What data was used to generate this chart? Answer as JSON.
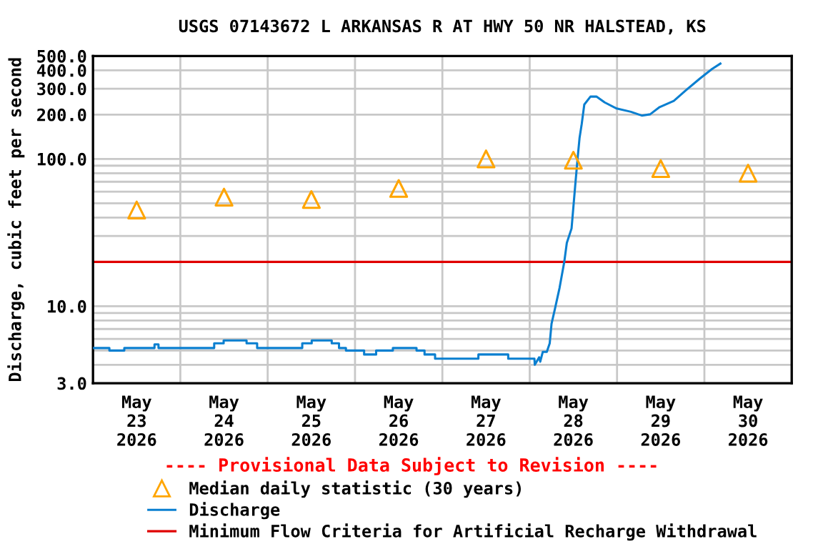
{
  "chart_data": {
    "type": "line",
    "title": "USGS 07143672 L ARKANSAS R AT HWY 50 NR HALSTEAD, KS",
    "ylabel": "Discharge, cubic feet per second",
    "log": "y",
    "grid": true,
    "legend": "bottom",
    "annotations": [
      "---- Provisional Data Subject to Revision ----"
    ],
    "xlim": [
      "2026-05-23",
      "2026-05-31"
    ],
    "xticks": [
      {
        "value": "2026-05-23T12:00",
        "label": "May\n23\n2026"
      },
      {
        "value": "2026-05-24T12:00",
        "label": "May\n24\n2026"
      },
      {
        "value": "2026-05-25T12:00",
        "label": "May\n25\n2026"
      },
      {
        "value": "2026-05-26T12:00",
        "label": "May\n26\n2026"
      },
      {
        "value": "2026-05-27T12:00",
        "label": "May\n27\n2026"
      },
      {
        "value": "2026-05-28T12:00",
        "label": "May\n28\n2026"
      },
      {
        "value": "2026-05-29T12:00",
        "label": "May\n29\n2026"
      },
      {
        "value": "2026-05-30T12:00",
        "label": "May\n30\n2026"
      },
      {
        "value": "2026-05-24",
        "label": null
      },
      {
        "value": "2026-05-25",
        "label": null
      },
      {
        "value": "2026-05-26",
        "label": null
      },
      {
        "value": "2026-05-27",
        "label": null
      },
      {
        "value": "2026-05-28",
        "label": null
      },
      {
        "value": "2026-05-29",
        "label": null
      },
      {
        "value": "2026-05-30",
        "label": null
      }
    ],
    "ylim": [
      3,
      500
    ],
    "yticks": [
      {
        "value": 3,
        "label": "3.0"
      },
      {
        "value": 4,
        "label": null
      },
      {
        "value": 5,
        "label": null
      },
      {
        "value": 6,
        "label": null
      },
      {
        "value": 7,
        "label": null
      },
      {
        "value": 8,
        "label": null
      },
      {
        "value": 9,
        "label": null
      },
      {
        "value": 10,
        "label": "10.0"
      },
      {
        "value": 20,
        "label": null
      },
      {
        "value": 30,
        "label": null
      },
      {
        "value": 40,
        "label": null
      },
      {
        "value": 50,
        "label": null
      },
      {
        "value": 60,
        "label": null
      },
      {
        "value": 70,
        "label": null
      },
      {
        "value": 80,
        "label": null
      },
      {
        "value": 90,
        "label": null
      },
      {
        "value": 100,
        "label": "100.0"
      },
      {
        "value": 200,
        "label": "200.0"
      },
      {
        "value": 300,
        "label": "300.0"
      },
      {
        "value": 400,
        "label": "400.0"
      },
      {
        "value": 500,
        "label": "500.0"
      }
    ],
    "ref_lines": [
      {
        "axis": "y",
        "value": 20,
        "label": "Minimum Flow Criteria for Artificial Recharge Withdrawal",
        "color": "#e00000"
      }
    ],
    "series": [
      {
        "name": "Median daily statistic (30 years)",
        "type": "scatter",
        "marker": "triangle",
        "color": "#ffa500",
        "x": [
          "2026-05-23T12:00",
          "2026-05-24T12:00",
          "2026-05-25T12:00",
          "2026-05-26T12:00",
          "2026-05-27T12:00",
          "2026-05-28T12:00",
          "2026-05-29T12:00",
          "2026-05-30T12:00"
        ],
        "values": [
          45,
          55,
          53,
          63,
          100,
          98,
          86,
          80
        ]
      },
      {
        "name": "Discharge",
        "color": "#0a7fd0",
        "x": [
          "2026-05-23T00:00",
          "2026-05-23T04:30",
          "2026-05-23T04:30",
          "2026-05-23T08:36",
          "2026-05-23T08:36",
          "2026-05-23T16:54",
          "2026-05-23T16:54",
          "2026-05-23T18:00",
          "2026-05-23T18:00",
          "2026-05-24T09:18",
          "2026-05-24T09:18",
          "2026-05-24T11:54",
          "2026-05-24T11:54",
          "2026-05-24T18:12",
          "2026-05-24T18:12",
          "2026-05-24T21:06",
          "2026-05-24T21:06",
          "2026-05-25T09:30",
          "2026-05-25T09:30",
          "2026-05-25T12:06",
          "2026-05-25T12:06",
          "2026-05-25T17:36",
          "2026-05-25T17:36",
          "2026-05-25T19:36",
          "2026-05-25T19:36",
          "2026-05-25T21:30",
          "2026-05-25T21:30",
          "2026-05-26T02:30",
          "2026-05-26T02:30",
          "2026-05-26T05:48",
          "2026-05-26T05:48",
          "2026-05-26T10:24",
          "2026-05-26T10:24",
          "2026-05-26T16:54",
          "2026-05-26T16:54",
          "2026-05-26T19:06",
          "2026-05-26T19:06",
          "2026-05-26T22:00",
          "2026-05-26T22:00",
          "2026-05-27T09:54",
          "2026-05-27T09:54",
          "2026-05-27T18:06",
          "2026-05-27T18:06",
          "2026-05-28T01:18",
          "2026-05-28T01:24",
          "2026-05-28T02:36",
          "2026-05-28T02:54",
          "2026-05-28T03:36",
          "2026-05-28T04:42",
          "2026-05-28T05:30",
          "2026-05-28T06:00",
          "2026-05-28T06:54",
          "2026-05-28T08:12",
          "2026-05-28T09:30",
          "2026-05-28T10:12",
          "2026-05-28T11:30",
          "2026-05-28T12:30",
          "2026-05-28T13:12",
          "2026-05-28T13:42",
          "2026-05-28T14:18",
          "2026-05-28T15:00",
          "2026-05-28T16:42",
          "2026-05-28T18:24",
          "2026-05-28T20:36",
          "2026-05-28T23:54",
          "2026-05-29T03:48",
          "2026-05-29T06:48",
          "2026-05-29T09:06",
          "2026-05-29T11:42",
          "2026-05-29T15:36",
          "2026-05-29T18:54",
          "2026-05-29T22:48",
          "2026-05-30T02:06",
          "2026-05-30T04:24"
        ],
        "values": [
          5.2,
          5.2,
          5.0,
          5.0,
          5.2,
          5.2,
          5.5,
          5.5,
          5.2,
          5.2,
          5.6,
          5.6,
          5.85,
          5.85,
          5.6,
          5.6,
          5.2,
          5.2,
          5.6,
          5.6,
          5.85,
          5.85,
          5.6,
          5.6,
          5.2,
          5.2,
          5.0,
          5.0,
          4.7,
          4.7,
          5.0,
          5.0,
          5.2,
          5.2,
          5.0,
          5.0,
          4.7,
          4.7,
          4.4,
          4.4,
          4.7,
          4.7,
          4.4,
          4.4,
          4.0,
          4.5,
          4.2,
          4.9,
          4.9,
          5.6,
          7.6,
          9.5,
          13.3,
          20,
          26.9,
          33.7,
          65.8,
          103,
          139,
          173,
          234,
          265,
          265,
          242,
          220,
          209,
          197,
          201,
          225,
          248,
          292,
          352,
          408,
          444
        ]
      }
    ]
  }
}
